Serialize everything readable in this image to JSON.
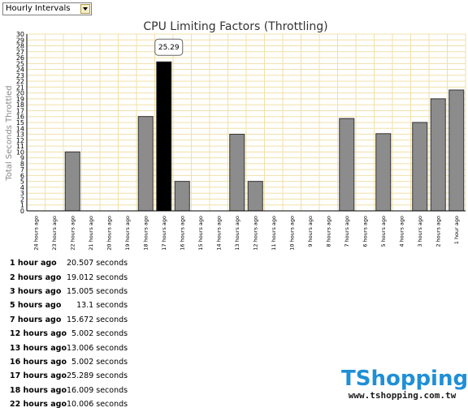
{
  "interval_select": {
    "value": "Hourly Intervals"
  },
  "chart_data": {
    "type": "bar",
    "title": "CPU Limiting Factors (Throttling)",
    "ylabel": "Total Seconds Throttled",
    "xlabel": "",
    "ylim": [
      0,
      30
    ],
    "yticks": [
      0,
      1,
      2,
      3,
      4,
      5,
      6,
      7,
      8,
      9,
      10,
      11,
      12,
      13,
      14,
      15,
      16,
      17,
      18,
      19,
      20,
      21,
      22,
      23,
      24,
      25,
      26,
      27,
      28,
      29,
      30
    ],
    "categories": [
      "24 hours ago",
      "23 hours ago",
      "22 hours ago",
      "21 hours ago",
      "20 hours ago",
      "19 hours ago",
      "18 hours ago",
      "17 hours ago",
      "16 hours ago",
      "15 hours ago",
      "14 hours ago",
      "13 hours ago",
      "12 hours ago",
      "11 hours ago",
      "10 hours ago",
      "9 hours ago",
      "8 hours ago",
      "7 hours ago",
      "6 hours ago",
      "5 hours ago",
      "4 hours ago",
      "3 hours ago",
      "2 hours ago",
      "1 hour ago"
    ],
    "values": [
      0,
      0,
      10.006,
      0,
      0,
      0,
      16.009,
      25.289,
      5.002,
      0,
      0,
      13.006,
      5.002,
      0,
      0,
      0,
      0,
      15.672,
      0,
      13.1,
      0,
      15.005,
      19.012,
      20.507
    ],
    "highlighted_index": 7,
    "tooltip": "25.29",
    "bar_color": "#8c8c8c",
    "highlight_color": "#000000",
    "grid_color": "#f0e0a8",
    "grid": true
  },
  "summary": [
    {
      "label": "1 hour ago",
      "value": "20.507 seconds"
    },
    {
      "label": "2 hours ago",
      "value": "19.012 seconds"
    },
    {
      "label": "3 hours ago",
      "value": "15.005 seconds"
    },
    {
      "label": "5 hours ago",
      "value": "13.1 seconds"
    },
    {
      "label": "7 hours ago",
      "value": "15.672 seconds"
    },
    {
      "label": "12 hours ago",
      "value": "5.002 seconds"
    },
    {
      "label": "13 hours ago",
      "value": "13.006 seconds"
    },
    {
      "label": "16 hours ago",
      "value": "5.002 seconds"
    },
    {
      "label": "17 hours ago",
      "value": "25.289 seconds"
    },
    {
      "label": "18 hours ago",
      "value": "16.009 seconds"
    },
    {
      "label": "22 hours ago",
      "value": "10.006 seconds"
    }
  ],
  "watermark": {
    "logo": "TShopping",
    "url": "www.tshopping.com.tw"
  }
}
